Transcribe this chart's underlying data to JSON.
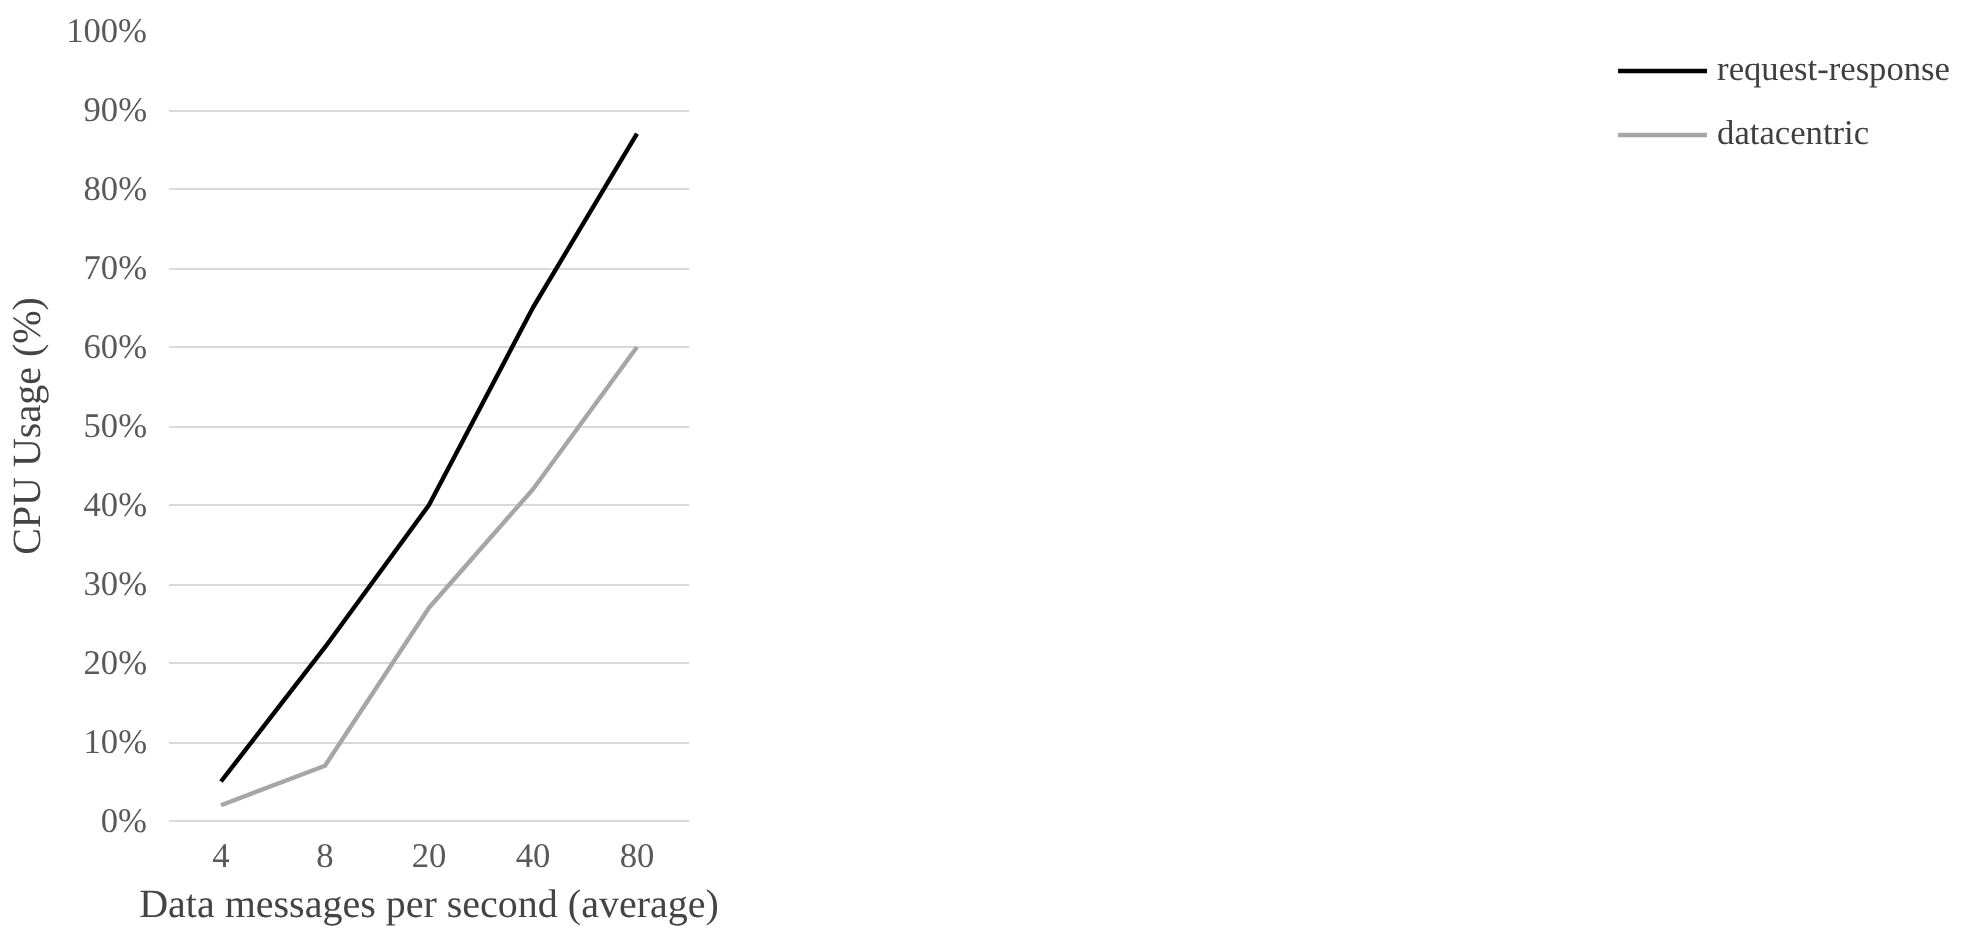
{
  "chart_data": {
    "type": "line",
    "xlabel": "Data messages per second (average)",
    "ylabel": "CPU Usage (%)",
    "categories": [
      "4",
      "8",
      "20",
      "40",
      "80"
    ],
    "series": [
      {
        "name": "request-response",
        "color": "#000000",
        "values": [
          5,
          22,
          40,
          65,
          87
        ]
      },
      {
        "name": "datacentric",
        "color": "#a6a6a6",
        "values": [
          2,
          7,
          27,
          42,
          60
        ]
      }
    ],
    "ylim": [
      0,
      100
    ],
    "yticks": [
      {
        "value": 0,
        "label": "0%"
      },
      {
        "value": 10,
        "label": "10%"
      },
      {
        "value": 20,
        "label": "20%"
      },
      {
        "value": 30,
        "label": "30%"
      },
      {
        "value": 40,
        "label": "40%"
      },
      {
        "value": 50,
        "label": "50%"
      },
      {
        "value": 60,
        "label": "60%"
      },
      {
        "value": 70,
        "label": "70%"
      },
      {
        "value": 80,
        "label": "80%"
      },
      {
        "value": 90,
        "label": "90%"
      },
      {
        "value": 100,
        "label": "100%"
      }
    ],
    "grid": "y",
    "legend": "right",
    "marker": "none",
    "line_style": "solid"
  }
}
